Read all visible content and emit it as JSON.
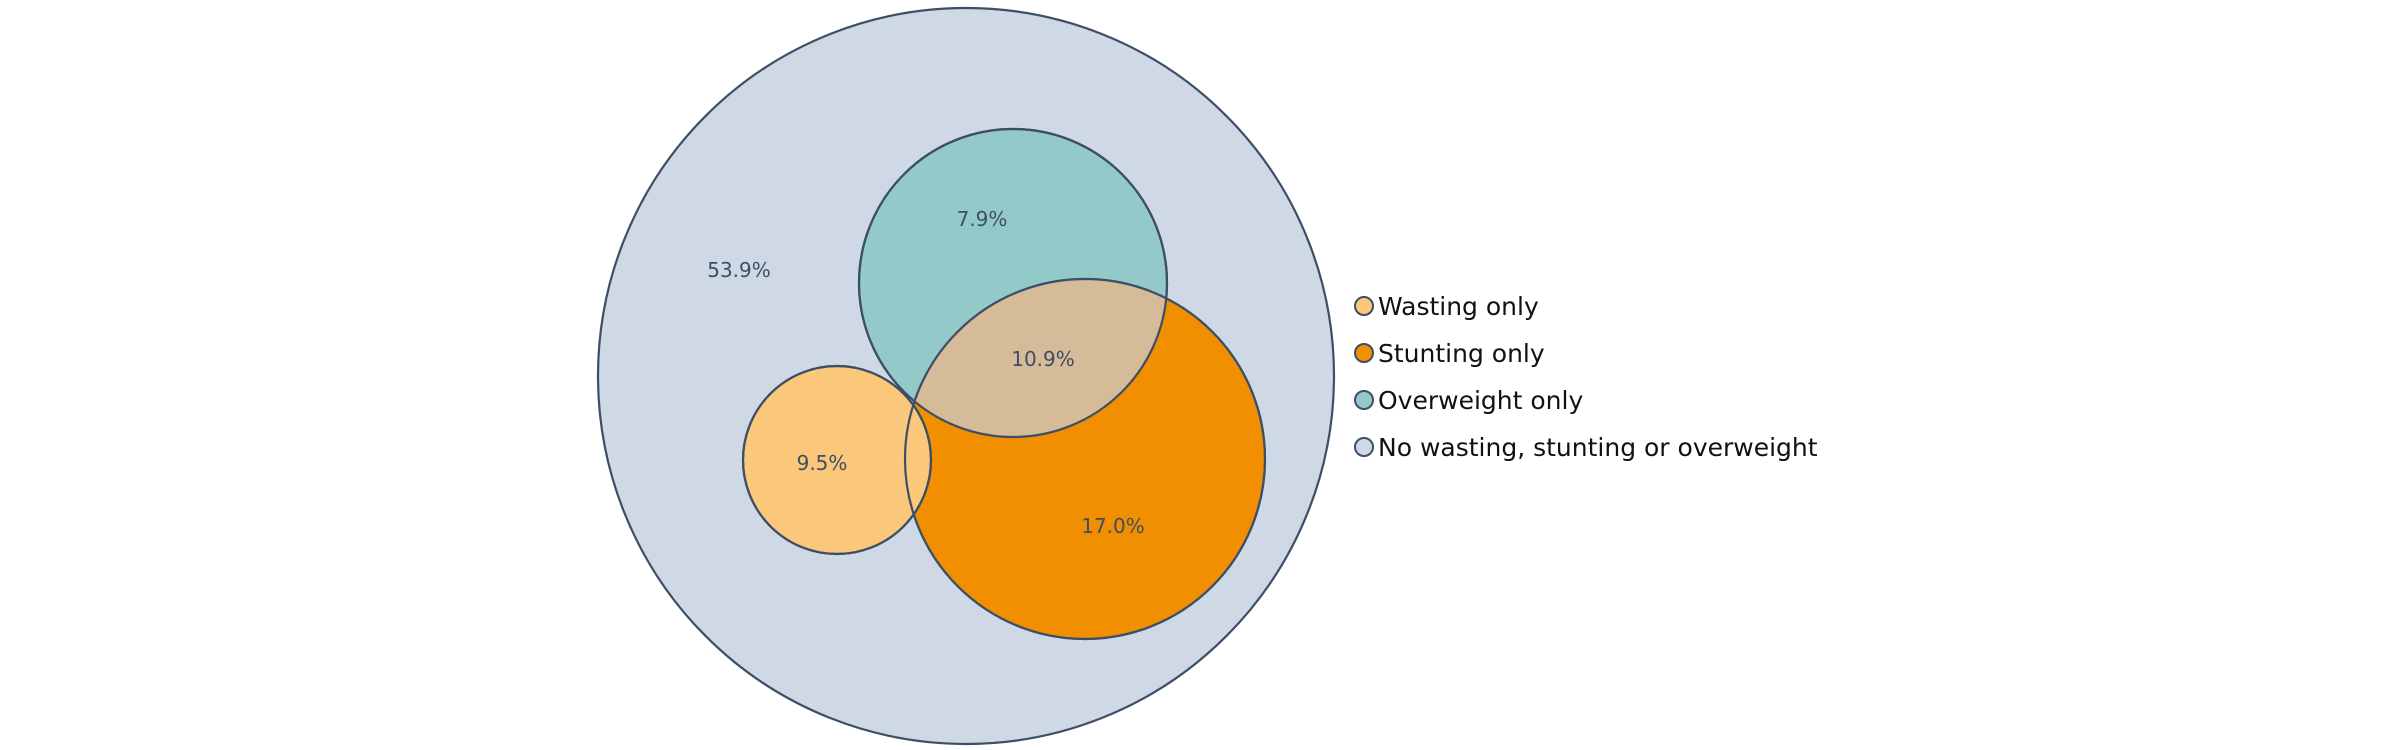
{
  "diagram": {
    "type": "nested-venn",
    "regions": {
      "none": {
        "label": "53.9%",
        "color": "#cfd9e5"
      },
      "overweight": {
        "label": "7.9%",
        "color": "#94c9c9"
      },
      "wasting": {
        "label": "9.5%",
        "color": "#fbc77b"
      },
      "stunting": {
        "label": "17.0%",
        "color": "#f28f00"
      },
      "overlap": {
        "label": "10.9%",
        "color": "#d6bb99"
      }
    },
    "outline_color": "#3d4f66"
  },
  "legend": {
    "items": [
      {
        "label": "Wasting only",
        "color": "#fbc77b"
      },
      {
        "label": "Stunting only",
        "color": "#f28f00"
      },
      {
        "label": "Overweight only",
        "color": "#94c9c9"
      },
      {
        "label": "No wasting, stunting or overweight",
        "color": "#cfd9e5"
      }
    ]
  }
}
